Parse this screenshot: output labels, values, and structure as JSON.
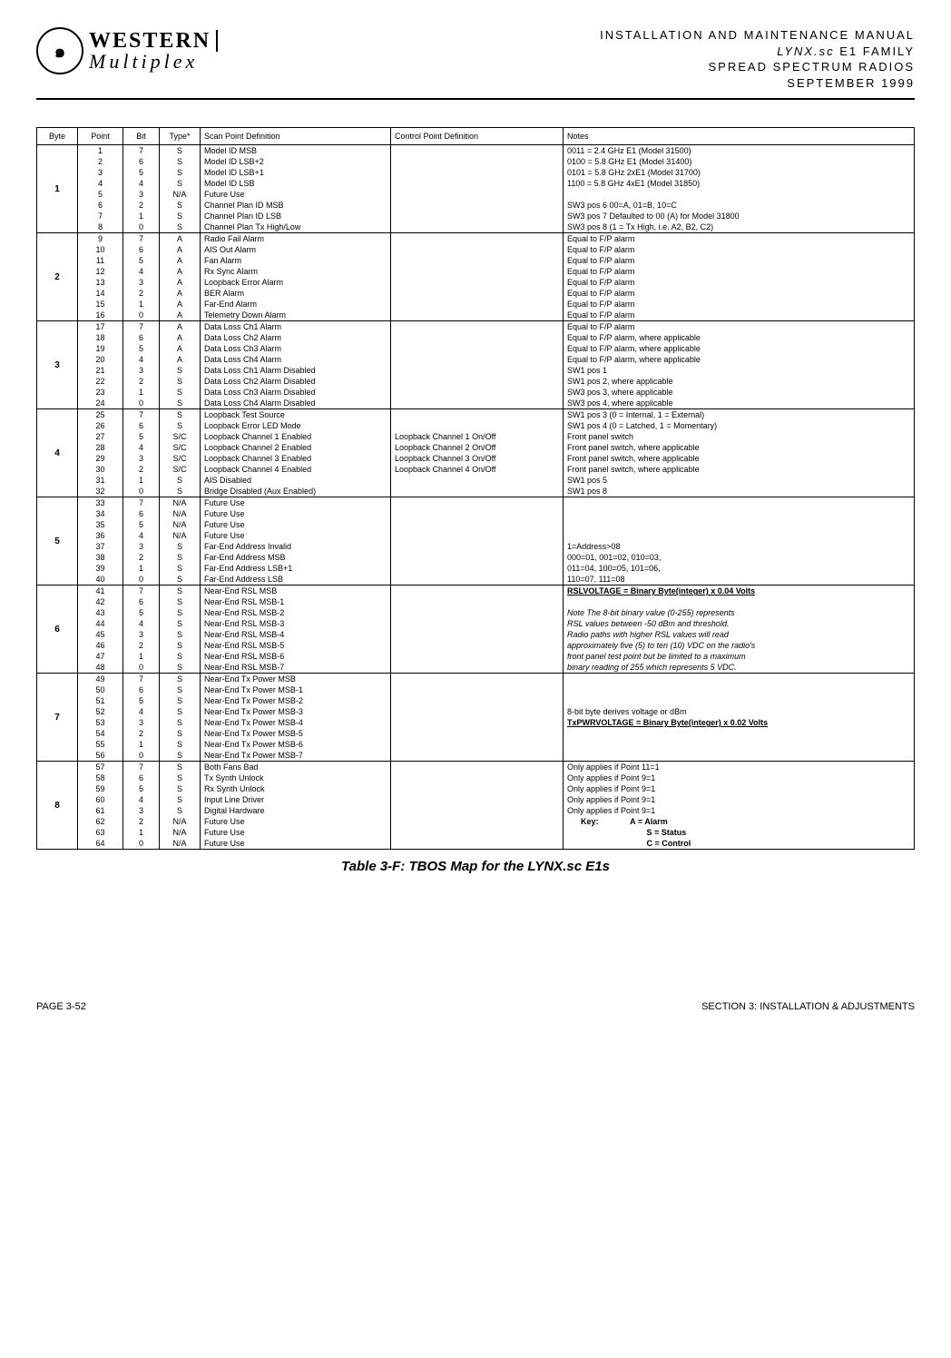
{
  "header": {
    "logo_main": "WESTERN",
    "logo_sub": "Multiplex",
    "title_line1": "INSTALLATION AND MAINTENANCE MANUAL",
    "title_lynx": "LYNX.sc",
    "title_line2_rest": " E1 FAMILY",
    "title_line3": "SPREAD SPECTRUM RADIOS",
    "title_line4": "SEPTEMBER 1999"
  },
  "columns": [
    "Byte",
    "Point",
    "Bit",
    "Type*",
    "Scan Point Definition",
    "Control Point Definition",
    "Notes"
  ],
  "col_widths": [
    "45px",
    "50px",
    "40px",
    "45px",
    "210px",
    "190px",
    "auto"
  ],
  "col_align": [
    "c",
    "c",
    "c",
    "c",
    "l",
    "l",
    "l"
  ],
  "groups": [
    {
      "byte": "1",
      "rows": [
        {
          "point": "1",
          "bit": "7",
          "type": "S",
          "scan": "Model ID MSB",
          "ctrl": "",
          "notes": "0011 = 2.4 GHz E1 (Model 31500)"
        },
        {
          "point": "2",
          "bit": "6",
          "type": "S",
          "scan": "Model ID LSB+2",
          "ctrl": "",
          "notes": "0100 = 5.8 GHz E1 (Model 31400)"
        },
        {
          "point": "3",
          "bit": "5",
          "type": "S",
          "scan": "Model ID LSB+1",
          "ctrl": "",
          "notes": "0101 = 5.8 GHz 2xE1 (Model 31700)"
        },
        {
          "point": "4",
          "bit": "4",
          "type": "S",
          "scan": "Model ID LSB",
          "ctrl": "",
          "notes": "1100 = 5.8 GHz 4xE1 (Model 31850)"
        },
        {
          "point": "5",
          "bit": "3",
          "type": "N/A",
          "scan": "Future Use",
          "ctrl": "",
          "notes": ""
        },
        {
          "point": "6",
          "bit": "2",
          "type": "S",
          "scan": "Channel Plan ID MSB",
          "ctrl": "",
          "notes": "SW3 pos 6     00=A, 01=B, 10=C"
        },
        {
          "point": "7",
          "bit": "1",
          "type": "S",
          "scan": "Channel Plan ID LSB",
          "ctrl": "",
          "notes": "SW3 pos 7     Defaulted to 00 (A) for Model 31800"
        },
        {
          "point": "8",
          "bit": "0",
          "type": "S",
          "scan": "Channel Plan Tx High/Low",
          "ctrl": "",
          "notes": "SW3 pos 8 (1 = Tx High, i.e. A2, B2, C2)"
        }
      ]
    },
    {
      "byte": "2",
      "rows": [
        {
          "point": "9",
          "bit": "7",
          "type": "A",
          "scan": "Radio Fail Alarm",
          "ctrl": "",
          "notes": "Equal to F/P alarm"
        },
        {
          "point": "10",
          "bit": "6",
          "type": "A",
          "scan": "AIS Out Alarm",
          "ctrl": "",
          "notes": "Equal to F/P alarm"
        },
        {
          "point": "11",
          "bit": "5",
          "type": "A",
          "scan": "Fan Alarm",
          "ctrl": "",
          "notes": "Equal to F/P alarm"
        },
        {
          "point": "12",
          "bit": "4",
          "type": "A",
          "scan": "Rx Sync Alarm",
          "ctrl": "",
          "notes": "Equal to F/P alarm"
        },
        {
          "point": "13",
          "bit": "3",
          "type": "A",
          "scan": "Loopback Error Alarm",
          "ctrl": "",
          "notes": "Equal to F/P alarm"
        },
        {
          "point": "14",
          "bit": "2",
          "type": "A",
          "scan": "BER Alarm",
          "ctrl": "",
          "notes": "Equal to F/P alarm"
        },
        {
          "point": "15",
          "bit": "1",
          "type": "A",
          "scan": "Far-End Alarm",
          "ctrl": "",
          "notes": "Equal to F/P alarm"
        },
        {
          "point": "16",
          "bit": "0",
          "type": "A",
          "scan": "Telemetry Down Alarm",
          "ctrl": "",
          "notes": "Equal to F/P alarm"
        }
      ]
    },
    {
      "byte": "3",
      "rows": [
        {
          "point": "17",
          "bit": "7",
          "type": "A",
          "scan": "Data Loss Ch1 Alarm",
          "ctrl": "",
          "notes": "Equal to F/P alarm"
        },
        {
          "point": "18",
          "bit": "6",
          "type": "A",
          "scan": "Data Loss Ch2 Alarm",
          "ctrl": "",
          "notes": "Equal to F/P alarm, where applicable"
        },
        {
          "point": "19",
          "bit": "5",
          "type": "A",
          "scan": "Data Loss Ch3 Alarm",
          "ctrl": "",
          "notes": "Equal to F/P alarm, where applicable"
        },
        {
          "point": "20",
          "bit": "4",
          "type": "A",
          "scan": "Data Loss Ch4 Alarm",
          "ctrl": "",
          "notes": "Equal to F/P alarm, where applicable"
        },
        {
          "point": "21",
          "bit": "3",
          "type": "S",
          "scan": "Data Loss Ch1 Alarm Disabled",
          "ctrl": "",
          "notes": "SW1 pos 1"
        },
        {
          "point": "22",
          "bit": "2",
          "type": "S",
          "scan": "Data Loss Ch2 Alarm Disabled",
          "ctrl": "",
          "notes": "SW1 pos 2, where applicable"
        },
        {
          "point": "23",
          "bit": "1",
          "type": "S",
          "scan": "Data Loss Ch3 Alarm Disabled",
          "ctrl": "",
          "notes": "SW3 pos 3, where applicable"
        },
        {
          "point": "24",
          "bit": "0",
          "type": "S",
          "scan": "Data Loss Ch4 Alarm Disabled",
          "ctrl": "",
          "notes": "SW3 pos 4, where applicable"
        }
      ]
    },
    {
      "byte": "4",
      "rows": [
        {
          "point": "25",
          "bit": "7",
          "type": "S",
          "scan": "Loopback Test Source",
          "ctrl": "",
          "notes": "SW1 pos 3 (0 = Internal, 1 = External)"
        },
        {
          "point": "26",
          "bit": "6",
          "type": "S",
          "scan": "Loopback Error LED Mode",
          "ctrl": "",
          "notes": "SW1 pos 4 (0 = Latched, 1 = Momentary)"
        },
        {
          "point": "27",
          "bit": "5",
          "type": "S/C",
          "scan": "Loopback Channel 1 Enabled",
          "ctrl": "Loopback Channel 1 On/Off",
          "notes": "Front panel switch"
        },
        {
          "point": "28",
          "bit": "4",
          "type": "S/C",
          "scan": "Loopback Channel 2 Enabled",
          "ctrl": "Loopback Channel 2 On/Off",
          "notes": "Front panel switch, where applicable"
        },
        {
          "point": "29",
          "bit": "3",
          "type": "S/C",
          "scan": "Loopback Channel 3 Enabled",
          "ctrl": "Loopback Channel 3 On/Off",
          "notes": "Front panel switch, where applicable"
        },
        {
          "point": "30",
          "bit": "2",
          "type": "S/C",
          "scan": "Loopback Channel 4 Enabled",
          "ctrl": "Loopback Channel 4 On/Off",
          "notes": "Front panel switch, where applicable"
        },
        {
          "point": "31",
          "bit": "1",
          "type": "S",
          "scan": "AIS Disabled",
          "ctrl": "",
          "notes": "SW1 pos 5"
        },
        {
          "point": "32",
          "bit": "0",
          "type": "S",
          "scan": "Bridge Disabled (Aux Enabled)",
          "ctrl": "",
          "notes": "SW1 pos 8"
        }
      ]
    },
    {
      "byte": "5",
      "rows": [
        {
          "point": "33",
          "bit": "7",
          "type": "N/A",
          "scan": "Future Use",
          "ctrl": "",
          "notes": ""
        },
        {
          "point": "34",
          "bit": "6",
          "type": "N/A",
          "scan": "Future Use",
          "ctrl": "",
          "notes": ""
        },
        {
          "point": "35",
          "bit": "5",
          "type": "N/A",
          "scan": "Future Use",
          "ctrl": "",
          "notes": ""
        },
        {
          "point": "36",
          "bit": "4",
          "type": "N/A",
          "scan": "Future Use",
          "ctrl": "",
          "notes": ""
        },
        {
          "point": "37",
          "bit": "3",
          "type": "S",
          "scan": "Far-End Address Invalid",
          "ctrl": "",
          "notes": "1=Address>08"
        },
        {
          "point": "38",
          "bit": "2",
          "type": "S",
          "scan": "Far-End Address MSB",
          "ctrl": "",
          "notes": "000=01, 001=02, 010=03,"
        },
        {
          "point": "39",
          "bit": "1",
          "type": "S",
          "scan": "Far-End Address LSB+1",
          "ctrl": "",
          "notes": "011=04, 100=05, 101=06,"
        },
        {
          "point": "40",
          "bit": "0",
          "type": "S",
          "scan": "Far-End Address LSB",
          "ctrl": "",
          "notes": "110=07, 111=08"
        }
      ]
    },
    {
      "byte": "6",
      "rows": [
        {
          "point": "41",
          "bit": "7",
          "type": "S",
          "scan": "Near-End RSL MSB",
          "ctrl": "",
          "notes": "[[U]]RSLVOLTAGE  = Binary Byte(integer) x 0.04 Volts"
        },
        {
          "point": "42",
          "bit": "6",
          "type": "S",
          "scan": "Near-End RSL MSB-1",
          "ctrl": "",
          "notes": ""
        },
        {
          "point": "43",
          "bit": "5",
          "type": "S",
          "scan": "Near-End RSL MSB-2",
          "ctrl": "",
          "notes": "[[I]]Note The 8-bit binary value (0-255) represents"
        },
        {
          "point": "44",
          "bit": "4",
          "type": "S",
          "scan": "Near-End RSL MSB-3",
          "ctrl": "",
          "notes": "[[I]]RSL values between -50 dBm and threshold."
        },
        {
          "point": "45",
          "bit": "3",
          "type": "S",
          "scan": "Near-End RSL MSB-4",
          "ctrl": "",
          "notes": "[[I]]Radio paths with higher RSL values will read"
        },
        {
          "point": "46",
          "bit": "2",
          "type": "S",
          "scan": "Near-End RSL MSB-5",
          "ctrl": "",
          "notes": "[[I]]approximately five (5) to ten (10) VDC on the radio's"
        },
        {
          "point": "47",
          "bit": "1",
          "type": "S",
          "scan": "Near-End RSL MSB-6",
          "ctrl": "",
          "notes": "[[I]]front panel test point but be limited to a maximum"
        },
        {
          "point": "48",
          "bit": "0",
          "type": "S",
          "scan": "Near-End RSL MSB-7",
          "ctrl": "",
          "notes": "[[I]]binary reading of 255 which represents 5 VDC."
        }
      ]
    },
    {
      "byte": "7",
      "rows": [
        {
          "point": "49",
          "bit": "7",
          "type": "S",
          "scan": "Near-End Tx Power MSB",
          "ctrl": "",
          "notes": ""
        },
        {
          "point": "50",
          "bit": "6",
          "type": "S",
          "scan": "Near-End Tx Power MSB-1",
          "ctrl": "",
          "notes": ""
        },
        {
          "point": "51",
          "bit": "5",
          "type": "S",
          "scan": "Near-End Tx Power MSB-2",
          "ctrl": "",
          "notes": ""
        },
        {
          "point": "52",
          "bit": "4",
          "type": "S",
          "scan": "Near-End Tx Power MSB-3",
          "ctrl": "",
          "notes": "8-bit byte derives voltage or dBm"
        },
        {
          "point": "53",
          "bit": "3",
          "type": "S",
          "scan": "Near-End Tx Power MSB-4",
          "ctrl": "",
          "notes": "[[U]]TxPWRVOLTAGE  = Binary Byte(integer) x 0.02 Volts"
        },
        {
          "point": "54",
          "bit": "2",
          "type": "S",
          "scan": "Near-End Tx Power MSB-5",
          "ctrl": "",
          "notes": ""
        },
        {
          "point": "55",
          "bit": "1",
          "type": "S",
          "scan": "Near-End Tx Power MSB-6",
          "ctrl": "",
          "notes": ""
        },
        {
          "point": "56",
          "bit": "0",
          "type": "S",
          "scan": "Near-End Tx Power MSB-7",
          "ctrl": "",
          "notes": ""
        }
      ]
    },
    {
      "byte": "8",
      "rows": [
        {
          "point": "57",
          "bit": "7",
          "type": "S",
          "scan": "Both Fans Bad",
          "ctrl": "",
          "notes": "Only applies if Point 11=1"
        },
        {
          "point": "58",
          "bit": "6",
          "type": "S",
          "scan": "Tx Synth Unlock",
          "ctrl": "",
          "notes": "Only applies if Point 9=1"
        },
        {
          "point": "59",
          "bit": "5",
          "type": "S",
          "scan": "Rx Synth Unlock",
          "ctrl": "",
          "notes": "Only applies if Point 9=1"
        },
        {
          "point": "60",
          "bit": "4",
          "type": "S",
          "scan": "Input Line Driver",
          "ctrl": "",
          "notes": "Only applies if Point 9=1"
        },
        {
          "point": "61",
          "bit": "3",
          "type": "S",
          "scan": "Digital Hardware",
          "ctrl": "",
          "notes": "Only applies if Point 9=1"
        },
        {
          "point": "62",
          "bit": "2",
          "type": "N/A",
          "scan": "Future Use",
          "ctrl": "",
          "notes": "[[B]]      Key:              A = Alarm"
        },
        {
          "point": "63",
          "bit": "1",
          "type": "N/A",
          "scan": "Future Use",
          "ctrl": "",
          "notes": "[[B]]                                   S = Status"
        },
        {
          "point": "64",
          "bit": "0",
          "type": "N/A",
          "scan": "Future Use",
          "ctrl": "",
          "notes": "[[B]]                                   C = Control"
        }
      ]
    }
  ],
  "caption": "Table 3-F: TBOS Map for the LYNX.sc E1s",
  "footer_left": "PAGE 3-52",
  "footer_right": "SECTION 3: INSTALLATION & ADJUSTMENTS"
}
